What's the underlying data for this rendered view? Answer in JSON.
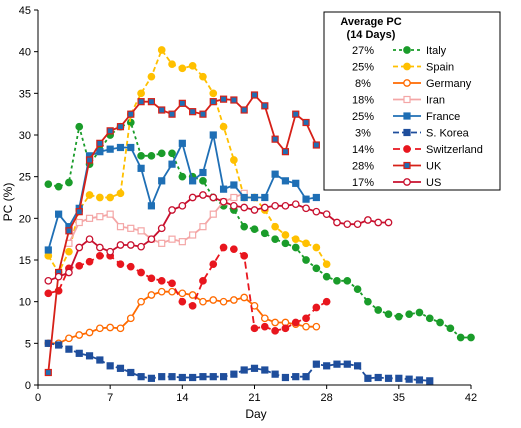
{
  "chart_data": {
    "type": "line",
    "xlabel": "Day",
    "ylabel": "PC (%)",
    "xlim": [
      0,
      42
    ],
    "ylim": [
      0,
      45
    ],
    "xticks": [
      0,
      7,
      14,
      21,
      28,
      35,
      42
    ],
    "yticks": [
      0,
      5,
      10,
      15,
      20,
      25,
      30,
      35,
      40,
      45
    ],
    "grid": false,
    "legend": {
      "placement": "top-right",
      "title_line1": "Average PC",
      "title_line2": "(14 Days)"
    },
    "series": [
      {
        "name": "Italy",
        "avg": "27%",
        "color": "#1a9c2a",
        "dash": "3,3",
        "marker": "circle",
        "fill": "#1a9c2a",
        "points": [
          [
            1,
            24.1
          ],
          [
            2,
            23.8
          ],
          [
            3,
            24.3
          ],
          [
            4,
            31
          ],
          [
            5,
            26.5
          ],
          [
            6,
            28.2
          ],
          [
            7,
            30
          ],
          [
            8,
            31
          ],
          [
            9,
            31.5
          ],
          [
            10,
            27.5
          ],
          [
            11,
            27.5
          ],
          [
            12,
            27.8
          ],
          [
            13,
            27.8
          ],
          [
            14,
            25
          ],
          [
            15,
            25
          ],
          [
            16,
            24.5
          ],
          [
            17,
            22.5
          ],
          [
            18,
            21.5
          ],
          [
            19,
            21
          ],
          [
            20,
            19
          ],
          [
            21,
            18.7
          ],
          [
            22,
            18.2
          ],
          [
            23,
            17.5
          ],
          [
            24,
            17
          ],
          [
            25,
            16.5
          ],
          [
            26,
            15
          ],
          [
            27,
            14
          ],
          [
            28,
            13
          ],
          [
            29,
            12.5
          ],
          [
            30,
            12.5
          ],
          [
            31,
            11.5
          ],
          [
            32,
            10
          ],
          [
            33,
            9
          ],
          [
            34,
            8.5
          ],
          [
            35,
            8.2
          ],
          [
            36,
            8.5
          ],
          [
            37,
            8.7
          ],
          [
            38,
            8
          ],
          [
            39,
            7.5
          ],
          [
            40,
            6.8
          ],
          [
            41,
            5.7
          ],
          [
            42,
            5.7
          ]
        ]
      },
      {
        "name": "Spain",
        "avg": "25%",
        "color": "#ffc000",
        "dash": "5,3",
        "marker": "circle",
        "fill": "#ffc000",
        "points": [
          [
            1,
            15.5
          ],
          [
            2,
            13.5
          ],
          [
            3,
            16
          ],
          [
            4,
            21
          ],
          [
            5,
            22.8
          ],
          [
            6,
            22.5
          ],
          [
            7,
            22.5
          ],
          [
            8,
            23
          ],
          [
            9,
            32.5
          ],
          [
            10,
            35
          ],
          [
            11,
            37
          ],
          [
            12,
            40.2
          ],
          [
            13,
            38.5
          ],
          [
            14,
            38
          ],
          [
            15,
            38.3
          ],
          [
            16,
            37
          ],
          [
            17,
            35
          ],
          [
            18,
            31
          ],
          [
            19,
            27
          ],
          [
            20,
            22.5
          ],
          [
            21,
            22.5
          ],
          [
            22,
            21
          ],
          [
            23,
            19
          ],
          [
            24,
            18
          ],
          [
            25,
            17.5
          ],
          [
            26,
            17
          ],
          [
            27,
            16.5
          ],
          [
            28,
            14.5
          ]
        ]
      },
      {
        "name": "Germany",
        "avg": "8%",
        "color": "#ff6a00",
        "dash": "",
        "marker": "circle",
        "fill": "#ffffff",
        "points": [
          [
            1,
            5
          ],
          [
            2,
            5
          ],
          [
            3,
            5.6
          ],
          [
            4,
            6
          ],
          [
            5,
            6.3
          ],
          [
            6,
            6.8
          ],
          [
            7,
            6.9
          ],
          [
            8,
            6.8
          ],
          [
            9,
            8
          ],
          [
            10,
            10
          ],
          [
            11,
            10.8
          ],
          [
            12,
            11.2
          ],
          [
            13,
            11.2
          ],
          [
            14,
            11
          ],
          [
            15,
            10.8
          ],
          [
            16,
            10
          ],
          [
            17,
            10.2
          ],
          [
            18,
            10
          ],
          [
            19,
            10.2
          ],
          [
            20,
            10.5
          ],
          [
            21,
            9.5
          ],
          [
            22,
            8
          ],
          [
            23,
            7.5
          ],
          [
            24,
            7.5
          ],
          [
            25,
            7.3
          ],
          [
            26,
            7
          ],
          [
            27,
            7
          ]
        ]
      },
      {
        "name": "Iran",
        "avg": "18%",
        "color": "#f4a6a6",
        "dash": "",
        "marker": "square",
        "fill": "#ffffff",
        "points": [
          [
            3,
            17
          ],
          [
            4,
            19.5
          ],
          [
            5,
            20
          ],
          [
            6,
            20.2
          ],
          [
            7,
            20.5
          ],
          [
            8,
            19
          ],
          [
            9,
            18.8
          ],
          [
            10,
            18.5
          ],
          [
            11,
            17.5
          ],
          [
            12,
            17
          ],
          [
            13,
            17.5
          ],
          [
            14,
            17.2
          ],
          [
            15,
            18
          ],
          [
            16,
            19
          ],
          [
            17,
            20.5
          ],
          [
            18,
            22
          ],
          [
            19,
            22.5
          ],
          [
            20,
            23
          ]
        ]
      },
      {
        "name": "France",
        "avg": "25%",
        "color": "#1f6fb5",
        "dash": "",
        "marker": "square",
        "fill": "#1f6fb5",
        "points": [
          [
            1,
            16.2
          ],
          [
            2,
            20.5
          ],
          [
            3,
            19
          ],
          [
            4,
            21.2
          ],
          [
            5,
            27.5
          ],
          [
            6,
            28
          ],
          [
            7,
            28.3
          ],
          [
            8,
            28.5
          ],
          [
            9,
            28.5
          ],
          [
            10,
            26
          ],
          [
            11,
            21.5
          ],
          [
            12,
            24.5
          ],
          [
            13,
            26.5
          ],
          [
            14,
            29
          ],
          [
            15,
            24.5
          ],
          [
            16,
            25.5
          ],
          [
            17,
            30
          ],
          [
            18,
            23.5
          ],
          [
            19,
            24
          ],
          [
            20,
            22.5
          ],
          [
            21,
            22.5
          ],
          [
            22,
            22.5
          ],
          [
            23,
            25.3
          ],
          [
            24,
            24.5
          ],
          [
            25,
            24.2
          ],
          [
            26,
            22.3
          ],
          [
            27,
            22.5
          ]
        ]
      },
      {
        "name": "S. Korea",
        "avg": "3%",
        "color": "#1f4e9c",
        "dash": "6,3",
        "marker": "square",
        "fill": "#1f4e9c",
        "points": [
          [
            1,
            5
          ],
          [
            2,
            4.8
          ],
          [
            3,
            4.3
          ],
          [
            4,
            3.8
          ],
          [
            5,
            3.5
          ],
          [
            6,
            3
          ],
          [
            7,
            2.3
          ],
          [
            8,
            2
          ],
          [
            9,
            1.5
          ],
          [
            10,
            1
          ],
          [
            11,
            0.8
          ],
          [
            12,
            1
          ],
          [
            13,
            1
          ],
          [
            14,
            0.9
          ],
          [
            15,
            0.9
          ],
          [
            16,
            1
          ],
          [
            17,
            1
          ],
          [
            18,
            1
          ],
          [
            19,
            1.3
          ],
          [
            20,
            1.8
          ],
          [
            21,
            2
          ],
          [
            22,
            1.8
          ],
          [
            23,
            1.3
          ],
          [
            24,
            0.9
          ],
          [
            25,
            1
          ],
          [
            26,
            1
          ],
          [
            27,
            2.5
          ],
          [
            28,
            2.3
          ],
          [
            29,
            2.5
          ],
          [
            30,
            2.5
          ],
          [
            31,
            2.3
          ],
          [
            32,
            0.8
          ],
          [
            33,
            0.9
          ],
          [
            34,
            0.8
          ],
          [
            35,
            0.8
          ],
          [
            36,
            0.7
          ],
          [
            37,
            0.6
          ],
          [
            38,
            0.5
          ]
        ]
      },
      {
        "name": "Switzerland",
        "avg": "14%",
        "color": "#e8161e",
        "dash": "7,4",
        "marker": "circle",
        "fill": "#e8161e",
        "points": [
          [
            1,
            11
          ],
          [
            2,
            11.3
          ],
          [
            3,
            14
          ],
          [
            4,
            14.3
          ],
          [
            5,
            14.8
          ],
          [
            6,
            15.5
          ],
          [
            7,
            15.5
          ],
          [
            8,
            14.5
          ],
          [
            9,
            14.2
          ],
          [
            10,
            13.5
          ],
          [
            11,
            12.8
          ],
          [
            12,
            12.5
          ],
          [
            13,
            12.2
          ],
          [
            14,
            10
          ],
          [
            15,
            9.5
          ],
          [
            16,
            12.5
          ],
          [
            17,
            14.5
          ],
          [
            18,
            16.5
          ],
          [
            19,
            16.3
          ],
          [
            20,
            15.5
          ],
          [
            21,
            6.8
          ],
          [
            22,
            7
          ],
          [
            23,
            6.5
          ],
          [
            24,
            6.8
          ],
          [
            25,
            7.5
          ],
          [
            26,
            8
          ],
          [
            27,
            9.3
          ],
          [
            28,
            10
          ]
        ]
      },
      {
        "name": "UK",
        "avg": "28%",
        "color": "#d62018",
        "dash": "",
        "marker": "square",
        "fill": "#1f6fb5",
        "points": [
          [
            1,
            1.5
          ],
          [
            2,
            13.5
          ],
          [
            3,
            18.5
          ],
          [
            4,
            20.8
          ],
          [
            5,
            27
          ],
          [
            6,
            29
          ],
          [
            7,
            30.5
          ],
          [
            8,
            31
          ],
          [
            9,
            32.5
          ],
          [
            10,
            34
          ],
          [
            11,
            34
          ],
          [
            12,
            33
          ],
          [
            13,
            32.5
          ],
          [
            14,
            33.8
          ],
          [
            15,
            32.8
          ],
          [
            16,
            32.5
          ],
          [
            17,
            34
          ],
          [
            18,
            34.3
          ],
          [
            19,
            34.2
          ],
          [
            20,
            33
          ],
          [
            21,
            34.8
          ],
          [
            22,
            33.5
          ],
          [
            23,
            29.5
          ],
          [
            24,
            28
          ],
          [
            25,
            32.5
          ],
          [
            26,
            31.5
          ],
          [
            27,
            28.8
          ]
        ]
      },
      {
        "name": "US",
        "avg": "17%",
        "color": "#c8102e",
        "dash": "",
        "marker": "circle",
        "fill": "#ffffff",
        "points": [
          [
            1,
            12.5
          ],
          [
            2,
            13
          ],
          [
            3,
            13.5
          ],
          [
            4,
            16.5
          ],
          [
            5,
            17.5
          ],
          [
            6,
            16.5
          ],
          [
            7,
            16
          ],
          [
            8,
            16.8
          ],
          [
            9,
            16.8
          ],
          [
            10,
            16.6
          ],
          [
            11,
            17.5
          ],
          [
            12,
            18.8
          ],
          [
            13,
            21
          ],
          [
            14,
            21.5
          ],
          [
            15,
            22.5
          ],
          [
            16,
            22.8
          ],
          [
            17,
            22.5
          ],
          [
            18,
            22
          ],
          [
            19,
            21.5
          ],
          [
            20,
            21.3
          ],
          [
            21,
            21
          ],
          [
            22,
            21.3
          ],
          [
            23,
            21.5
          ],
          [
            24,
            21.5
          ],
          [
            25,
            21.7
          ],
          [
            26,
            21.2
          ],
          [
            27,
            20.8
          ],
          [
            28,
            20.5
          ],
          [
            29,
            19.5
          ],
          [
            30,
            19.3
          ],
          [
            31,
            19.3
          ],
          [
            32,
            19.8
          ],
          [
            33,
            19.5
          ],
          [
            34,
            19.5
          ]
        ]
      }
    ]
  }
}
